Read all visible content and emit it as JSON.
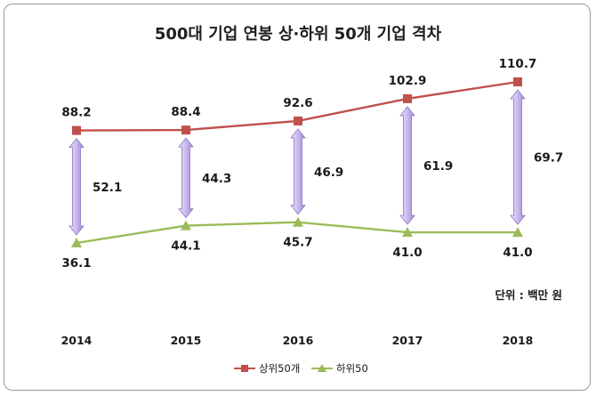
{
  "chart_data": {
    "type": "line",
    "title": "500대 기업 연봉 상·하위 50개 기업 격차",
    "unit_note": "단위 : 백만 원",
    "categories": [
      "2014",
      "2015",
      "2016",
      "2017",
      "2018"
    ],
    "series": [
      {
        "name": "상위50개",
        "values": [
          88.2,
          88.4,
          92.6,
          102.9,
          110.7
        ],
        "labels": [
          "88.2",
          "88.4",
          "92.6",
          "102.9",
          "110.7"
        ],
        "color": "#c0504d",
        "marker": "square"
      },
      {
        "name": "하위50",
        "values": [
          36.1,
          44.1,
          45.7,
          41.0,
          41.0
        ],
        "labels": [
          "36.1",
          "44.1",
          "45.7",
          "41.0",
          "41.0"
        ],
        "color": "#9bbb59",
        "marker": "triangle"
      }
    ],
    "gaps": [
      52.1,
      44.3,
      46.9,
      61.9,
      69.7
    ],
    "gap_labels": [
      "52.1",
      "44.3",
      "46.9",
      "61.9",
      "69.7"
    ],
    "gap_arrow_color": "#b7a6e0",
    "ylim": [
      30,
      115
    ],
    "grid": false,
    "legend_position": "bottom"
  }
}
